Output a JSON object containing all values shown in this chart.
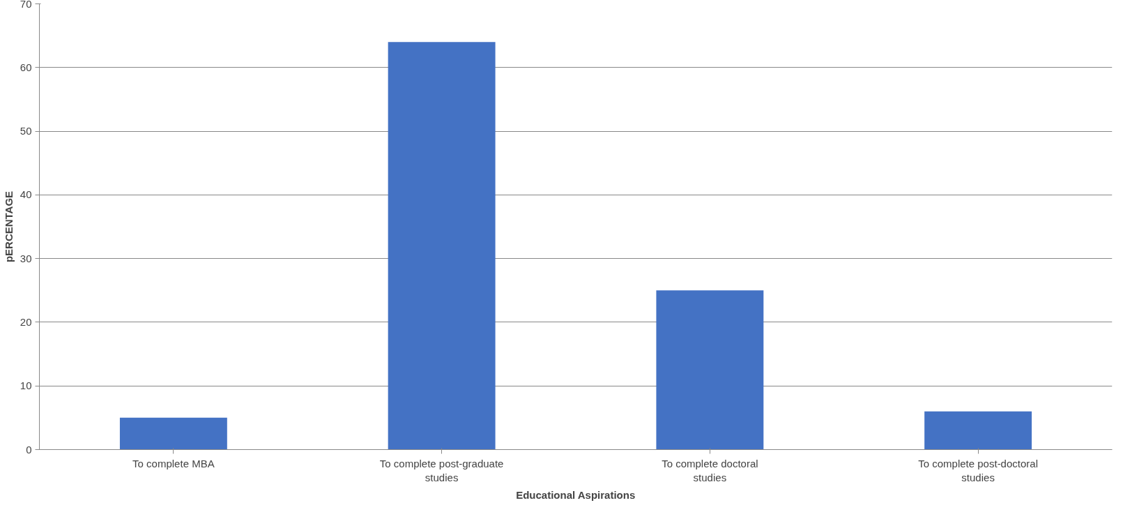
{
  "chart_data": {
    "type": "bar",
    "categories": [
      "To complete MBA",
      "To complete post-graduate studies",
      "To complete doctoral studies",
      "To complete post-doctoral studies"
    ],
    "values": [
      5,
      64,
      25,
      6
    ],
    "color": "#4472c4",
    "xlabel": "Educational Aspirations",
    "ylabel": "pERCENTAGE",
    "ylim": [
      0,
      70
    ],
    "yticks": [
      0,
      10,
      20,
      30,
      40,
      50,
      60,
      70
    ],
    "grid": "y"
  }
}
